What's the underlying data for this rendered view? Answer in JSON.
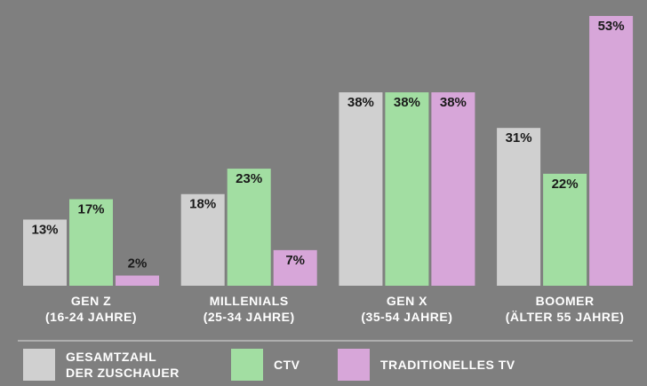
{
  "chart_data": {
    "type": "bar",
    "categories": [
      "GEN Z\n(16-24 JAHRE)",
      "MILLENIALS\n(25-34 JAHRE)",
      "GEN X\n(35-54 JAHRE)",
      "BOOMER\n(ÄLTER 55 JAHRE)"
    ],
    "series": [
      {
        "name": "GESAMTZAHL\nDER ZUSCHAUER",
        "color": "#d0d0d0",
        "values": [
          13,
          18,
          38,
          31
        ],
        "value_labels": [
          "13%",
          "18%",
          "38%",
          "31%"
        ]
      },
      {
        "name": "CTV",
        "color": "#a2dea2",
        "values": [
          17,
          23,
          38,
          22
        ],
        "value_labels": [
          "17%",
          "23%",
          "38%",
          "22%"
        ]
      },
      {
        "name": "TRADITIONELLES TV",
        "color": "#d7a6d9",
        "values": [
          2,
          7,
          38,
          53
        ],
        "value_labels": [
          "2%",
          "7%",
          "38%",
          "53%"
        ]
      }
    ]
  }
}
